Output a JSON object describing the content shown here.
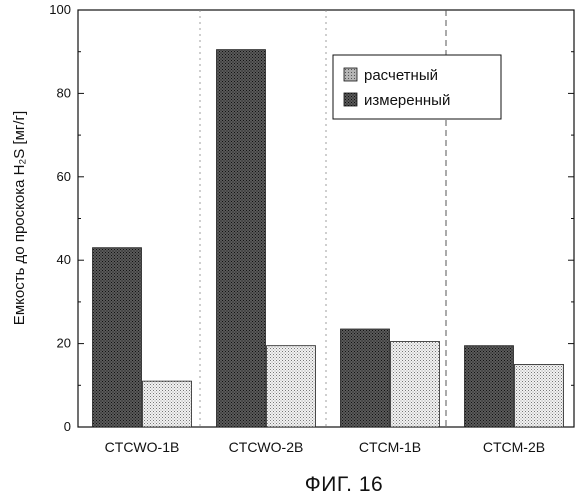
{
  "chart_data": {
    "type": "bar",
    "categories": [
      "CTCWO-1B",
      "CTCWO-2B",
      "CTCM-1B",
      "CTCM-2B"
    ],
    "series": [
      {
        "name": "измеренный",
        "values": [
          43,
          90.5,
          23.5,
          19.5
        ],
        "color": "#3a3a3a"
      },
      {
        "name": "расчетный",
        "values": [
          11,
          19.5,
          20.5,
          15
        ],
        "color": "#e4e4e4"
      }
    ],
    "ylabel": "Емкость до проскока H₂S [мг/г]",
    "ylim": [
      0,
      100
    ],
    "yticks": [
      0,
      20,
      40,
      60,
      80,
      100
    ],
    "legend": {
      "position": "top-right",
      "entries": [
        {
          "label": "расчетный",
          "color": "#9a9a9a"
        },
        {
          "label": "измеренный",
          "color": "#3a3a3a"
        }
      ]
    },
    "grid": false
  },
  "caption": "ФИГ. 16"
}
